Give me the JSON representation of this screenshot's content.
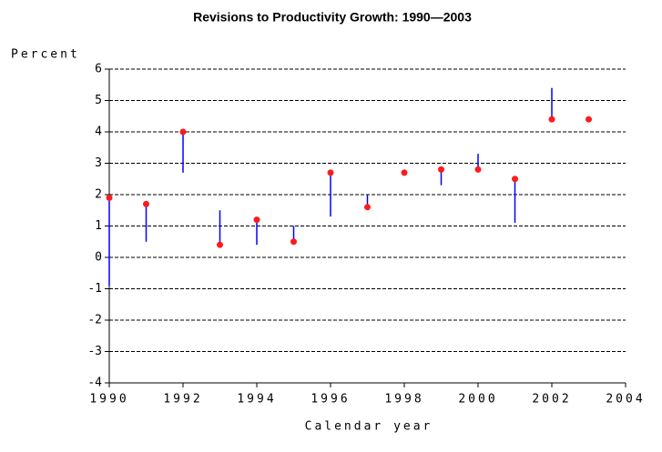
{
  "chart_data": {
    "type": "revision",
    "title": "Revisions to Productivity Growth: 1990—2003",
    "y_label": "Percent",
    "x_label": "Calendar year",
    "x": [
      1990,
      1991,
      1992,
      1993,
      1994,
      1995,
      1996,
      1997,
      1998,
      1999,
      2000,
      2001,
      2002,
      2003
    ],
    "values": [
      1.9,
      1.7,
      4.0,
      0.4,
      1.2,
      0.5,
      2.7,
      1.6,
      2.7,
      2.8,
      2.8,
      2.5,
      4.4,
      4.4
    ],
    "line_ends": [
      -0.9,
      0.5,
      2.7,
      1.5,
      0.4,
      1.0,
      1.3,
      2.0,
      2.8,
      2.3,
      3.3,
      1.1,
      5.4,
      null
    ],
    "color": "#ff1a1a",
    "line_color": "#0000ff",
    "xlim": [
      1990,
      2004
    ],
    "xticks": [
      1990,
      1992,
      1994,
      1996,
      1998,
      2000,
      2002,
      2004
    ],
    "ylim": [
      -4,
      6
    ],
    "yticks": [
      -4,
      -3,
      -2,
      -1,
      0,
      1,
      2,
      3,
      4,
      5,
      6
    ],
    "grid": true
  }
}
